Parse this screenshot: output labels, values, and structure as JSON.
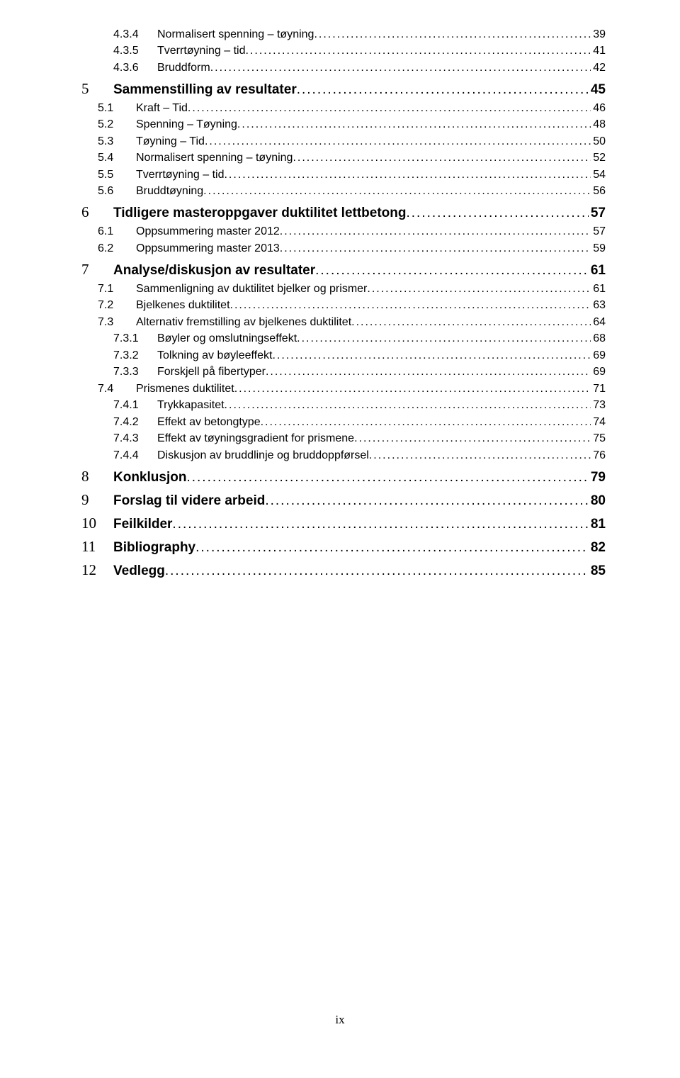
{
  "toc": [
    {
      "level": 3,
      "num": "4.3.4",
      "title": "Normalisert spenning – tøyning",
      "page": "39"
    },
    {
      "level": 3,
      "num": "4.3.5",
      "title": "Tverrtøyning – tid",
      "page": "41"
    },
    {
      "level": 3,
      "num": "4.3.6",
      "title": "Bruddform",
      "page": "42"
    },
    {
      "level": 1,
      "num": "5",
      "title": "Sammenstilling av resultater",
      "page": "45"
    },
    {
      "level": 2,
      "num": "5.1",
      "title": "Kraft – Tid",
      "page": "46"
    },
    {
      "level": 2,
      "num": "5.2",
      "title": "Spenning – Tøyning",
      "page": "48"
    },
    {
      "level": 2,
      "num": "5.3",
      "title": "Tøyning – Tid",
      "page": "50"
    },
    {
      "level": 2,
      "num": "5.4",
      "title": "Normalisert spenning – tøyning",
      "page": "52"
    },
    {
      "level": 2,
      "num": "5.5",
      "title": "Tverrtøyning – tid",
      "page": "54"
    },
    {
      "level": 2,
      "num": "5.6",
      "title": "Bruddtøyning",
      "page": "56"
    },
    {
      "level": 1,
      "num": "6",
      "title": "Tidligere masteroppgaver duktilitet lettbetong",
      "page": "57"
    },
    {
      "level": 2,
      "num": "6.1",
      "title": "Oppsummering master 2012",
      "page": "57"
    },
    {
      "level": 2,
      "num": "6.2",
      "title": "Oppsummering master 2013",
      "page": "59"
    },
    {
      "level": 1,
      "num": "7",
      "title": "Analyse/diskusjon av resultater",
      "page": "61"
    },
    {
      "level": 2,
      "num": "7.1",
      "title": "Sammenligning av duktilitet bjelker og prismer",
      "page": "61"
    },
    {
      "level": 2,
      "num": "7.2",
      "title": "Bjelkenes duktilitet",
      "page": "63"
    },
    {
      "level": 2,
      "num": "7.3",
      "title": "Alternativ fremstilling av bjelkenes duktilitet",
      "page": "64"
    },
    {
      "level": 3,
      "num": "7.3.1",
      "title": "Bøyler og omslutningseffekt",
      "page": "68"
    },
    {
      "level": 3,
      "num": "7.3.2",
      "title": "Tolkning av bøyleeffekt",
      "page": "69"
    },
    {
      "level": 3,
      "num": "7.3.3",
      "title": "Forskjell på fibertyper",
      "page": "69"
    },
    {
      "level": 2,
      "num": "7.4",
      "title": "Prismenes duktilitet",
      "page": "71"
    },
    {
      "level": 3,
      "num": "7.4.1",
      "title": "Trykkapasitet",
      "page": "73"
    },
    {
      "level": 3,
      "num": "7.4.2",
      "title": "Effekt av betongtype",
      "page": "74"
    },
    {
      "level": 3,
      "num": "7.4.3",
      "title": "Effekt av tøyningsgradient for prismene",
      "page": "75"
    },
    {
      "level": 3,
      "num": "7.4.4",
      "title": "Diskusjon av bruddlinje og bruddoppførsel",
      "page": "76"
    },
    {
      "level": 1,
      "num": "8",
      "title": "Konklusjon",
      "page": "79"
    },
    {
      "level": 1,
      "num": "9",
      "title": "Forslag til videre arbeid",
      "page": "80"
    },
    {
      "level": 1,
      "num": "10",
      "title": "Feilkilder",
      "page": "81"
    },
    {
      "level": 1,
      "num": "11",
      "title": "Bibliography",
      "page": "82"
    },
    {
      "level": 1,
      "num": "12",
      "title": "Vedlegg",
      "page": "85"
    }
  ],
  "footer": "ix"
}
